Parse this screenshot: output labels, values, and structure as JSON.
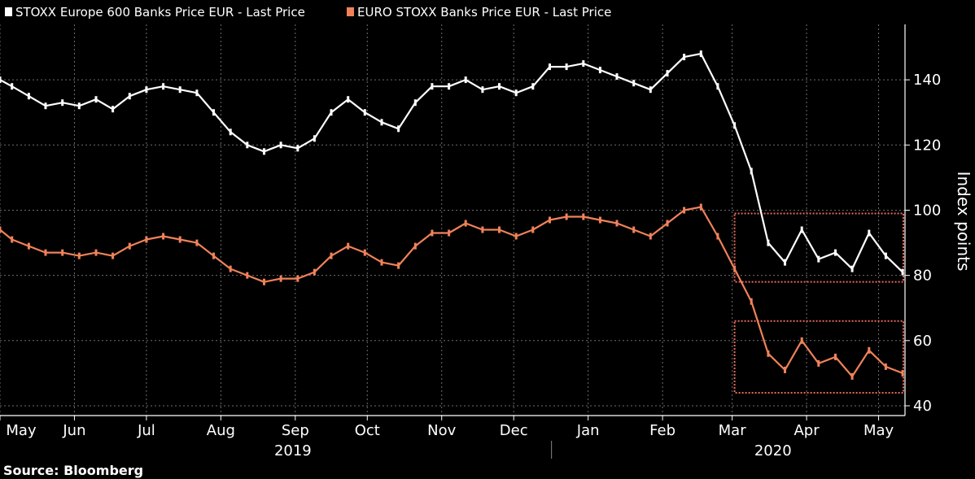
{
  "chart_data": {
    "type": "line",
    "title": "",
    "legend": {
      "placement": "top-left",
      "entries": [
        {
          "name": "STOXX Europe 600 Banks Price EUR - Last Price",
          "color": "#ffffff"
        },
        {
          "name": "EURO STOXX Banks Price EUR - Last Price",
          "color": "#f0825a"
        }
      ]
    },
    "ylabel": "Index points",
    "ylim": [
      37,
      157
    ],
    "yticks": [
      40,
      60,
      80,
      100,
      120,
      140
    ],
    "grid": true,
    "x_start": "2019-05-01",
    "x_end": "2020-05-12",
    "x_tick_dates": [
      "2019-05-01",
      "2019-06-01",
      "2019-07-01",
      "2019-08-01",
      "2019-09-01",
      "2019-10-01",
      "2019-11-01",
      "2019-12-01",
      "2020-01-01",
      "2020-02-01",
      "2020-03-01",
      "2020-04-01",
      "2020-05-01"
    ],
    "x_month_labels": [
      "May",
      "Jun",
      "Jul",
      "Aug",
      "Sep",
      "Oct",
      "Nov",
      "Dec",
      "Jan",
      "Feb",
      "Mar",
      "Apr",
      "May"
    ],
    "x_year_labels": [
      {
        "label": "2019",
        "date": "2019-08-31"
      },
      {
        "label": "2020",
        "date": "2020-03-18"
      }
    ],
    "year_separator_date": "2020-01-01",
    "annotations": [
      {
        "type": "dotted-box",
        "color": "#e8685a",
        "x_from": "2020-03-02",
        "x_to": "2020-05-12",
        "y_from": 78,
        "y_to": 99
      },
      {
        "type": "dotted-box",
        "color": "#e8685a",
        "x_from": "2020-03-02",
        "x_to": "2020-05-12",
        "y_from": 44,
        "y_to": 66
      }
    ],
    "series": [
      {
        "name": "STOXX Europe 600 Banks Price EUR - Last Price",
        "color": "#ffffff",
        "points": [
          [
            "2019-05-01",
            140
          ],
          [
            "2019-05-06",
            138
          ],
          [
            "2019-05-13",
            135
          ],
          [
            "2019-05-20",
            132
          ],
          [
            "2019-05-27",
            133
          ],
          [
            "2019-06-03",
            132
          ],
          [
            "2019-06-10",
            134
          ],
          [
            "2019-06-17",
            131
          ],
          [
            "2019-06-24",
            135
          ],
          [
            "2019-07-01",
            137
          ],
          [
            "2019-07-08",
            138
          ],
          [
            "2019-07-15",
            137
          ],
          [
            "2019-07-22",
            136
          ],
          [
            "2019-07-29",
            130
          ],
          [
            "2019-08-05",
            124
          ],
          [
            "2019-08-12",
            120
          ],
          [
            "2019-08-19",
            118
          ],
          [
            "2019-08-26",
            120
          ],
          [
            "2019-09-02",
            119
          ],
          [
            "2019-09-09",
            122
          ],
          [
            "2019-09-16",
            130
          ],
          [
            "2019-09-23",
            134
          ],
          [
            "2019-09-30",
            130
          ],
          [
            "2019-10-07",
            127
          ],
          [
            "2019-10-14",
            125
          ],
          [
            "2019-10-21",
            133
          ],
          [
            "2019-10-28",
            138
          ],
          [
            "2019-11-04",
            138
          ],
          [
            "2019-11-11",
            140
          ],
          [
            "2019-11-18",
            137
          ],
          [
            "2019-11-25",
            138
          ],
          [
            "2019-12-02",
            136
          ],
          [
            "2019-12-09",
            138
          ],
          [
            "2019-12-16",
            144
          ],
          [
            "2019-12-23",
            144
          ],
          [
            "2019-12-30",
            145
          ],
          [
            "2020-01-06",
            143
          ],
          [
            "2020-01-13",
            141
          ],
          [
            "2020-01-20",
            139
          ],
          [
            "2020-01-27",
            137
          ],
          [
            "2020-02-03",
            142
          ],
          [
            "2020-02-10",
            147
          ],
          [
            "2020-02-17",
            148
          ],
          [
            "2020-02-24",
            138
          ],
          [
            "2020-03-02",
            126
          ],
          [
            "2020-03-09",
            112
          ],
          [
            "2020-03-16",
            90
          ],
          [
            "2020-03-23",
            84
          ],
          [
            "2020-03-30",
            94
          ],
          [
            "2020-04-06",
            85
          ],
          [
            "2020-04-13",
            87
          ],
          [
            "2020-04-20",
            82
          ],
          [
            "2020-04-27",
            93
          ],
          [
            "2020-05-04",
            86
          ],
          [
            "2020-05-11",
            81
          ]
        ]
      },
      {
        "name": "EURO STOXX Banks Price EUR - Last Price",
        "color": "#f0825a",
        "points": [
          [
            "2019-05-01",
            94
          ],
          [
            "2019-05-06",
            91
          ],
          [
            "2019-05-13",
            89
          ],
          [
            "2019-05-20",
            87
          ],
          [
            "2019-05-27",
            87
          ],
          [
            "2019-06-03",
            86
          ],
          [
            "2019-06-10",
            87
          ],
          [
            "2019-06-17",
            86
          ],
          [
            "2019-06-24",
            89
          ],
          [
            "2019-07-01",
            91
          ],
          [
            "2019-07-08",
            92
          ],
          [
            "2019-07-15",
            91
          ],
          [
            "2019-07-22",
            90
          ],
          [
            "2019-07-29",
            86
          ],
          [
            "2019-08-05",
            82
          ],
          [
            "2019-08-12",
            80
          ],
          [
            "2019-08-19",
            78
          ],
          [
            "2019-08-26",
            79
          ],
          [
            "2019-09-02",
            79
          ],
          [
            "2019-09-09",
            81
          ],
          [
            "2019-09-16",
            86
          ],
          [
            "2019-09-23",
            89
          ],
          [
            "2019-09-30",
            87
          ],
          [
            "2019-10-07",
            84
          ],
          [
            "2019-10-14",
            83
          ],
          [
            "2019-10-21",
            89
          ],
          [
            "2019-10-28",
            93
          ],
          [
            "2019-11-04",
            93
          ],
          [
            "2019-11-11",
            96
          ],
          [
            "2019-11-18",
            94
          ],
          [
            "2019-11-25",
            94
          ],
          [
            "2019-12-02",
            92
          ],
          [
            "2019-12-09",
            94
          ],
          [
            "2019-12-16",
            97
          ],
          [
            "2019-12-23",
            98
          ],
          [
            "2019-12-30",
            98
          ],
          [
            "2020-01-06",
            97
          ],
          [
            "2020-01-13",
            96
          ],
          [
            "2020-01-20",
            94
          ],
          [
            "2020-01-27",
            92
          ],
          [
            "2020-02-03",
            96
          ],
          [
            "2020-02-10",
            100
          ],
          [
            "2020-02-17",
            101
          ],
          [
            "2020-02-24",
            92
          ],
          [
            "2020-03-02",
            82
          ],
          [
            "2020-03-09",
            72
          ],
          [
            "2020-03-16",
            56
          ],
          [
            "2020-03-23",
            51
          ],
          [
            "2020-03-30",
            60
          ],
          [
            "2020-04-06",
            53
          ],
          [
            "2020-04-13",
            55
          ],
          [
            "2020-04-20",
            49
          ],
          [
            "2020-04-27",
            57
          ],
          [
            "2020-05-04",
            52
          ],
          [
            "2020-05-11",
            50
          ]
        ]
      }
    ]
  },
  "source": "Source: Bloomberg"
}
